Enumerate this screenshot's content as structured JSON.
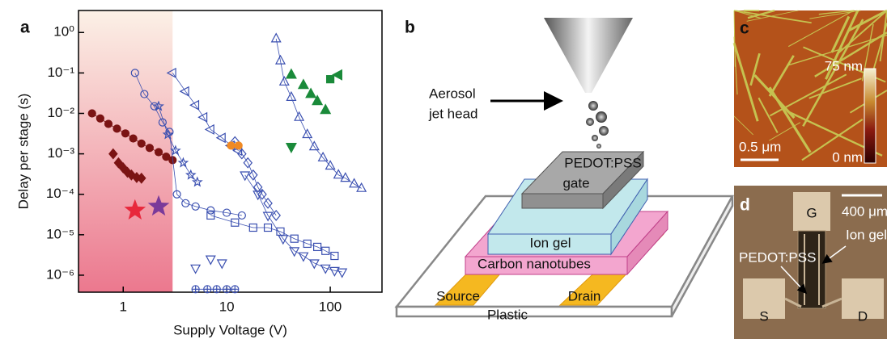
{
  "chart_data": {
    "type": "scatter",
    "panel_label": "a",
    "x_label": "Supply Voltage (V)",
    "y_label": "Delay per stage (s)",
    "xscale": "log",
    "yscale": "log",
    "xlim": [
      0.37,
      316
    ],
    "ylim": [
      3.8e-07,
      3.5
    ],
    "xticks": [
      1,
      10,
      100
    ],
    "yticks": [
      {
        "value": 1,
        "label": "10⁰"
      },
      {
        "value": 0.1,
        "label": "10⁻¹"
      },
      {
        "value": 0.01,
        "label": "10⁻²"
      },
      {
        "value": 0.001,
        "label": "10⁻³"
      },
      {
        "value": 0.0001,
        "label": "10⁻⁴"
      },
      {
        "value": 1e-05,
        "label": "10⁻⁵"
      },
      {
        "value": 1e-06,
        "label": "10⁻⁶"
      }
    ],
    "highlight_xlim": [
      0.37,
      3
    ],
    "highlight_color": "#e8607a",
    "series": [
      {
        "color": "#7b1414",
        "marker": "circle",
        "filled": true,
        "line": true,
        "x": [
          0.5,
          0.6,
          0.72,
          0.87,
          1.05,
          1.25,
          1.5,
          1.8,
          2.2,
          2.6,
          3
        ],
        "values": [
          0.01,
          0.0075,
          0.0055,
          0.0042,
          0.0032,
          0.0024,
          0.0018,
          0.0014,
          0.0011,
          0.00085,
          0.0007
        ]
      },
      {
        "color": "#7b1414",
        "marker": "diamond",
        "filled": true,
        "line": false,
        "x": [
          0.8,
          0.9,
          1.0,
          1.1,
          1.2,
          1.35,
          1.5
        ],
        "values": [
          0.001,
          0.0006,
          0.00045,
          0.00035,
          0.0003,
          0.00026,
          0.00025
        ]
      },
      {
        "color": "#e8283c",
        "marker": "big-star",
        "filled": true,
        "line": false,
        "x": [
          1.3
        ],
        "values": [
          4e-05
        ]
      },
      {
        "color": "#7a3a9a",
        "marker": "big-star",
        "filled": true,
        "line": false,
        "x": [
          2.2
        ],
        "values": [
          5e-05
        ]
      },
      {
        "color": "#3a4fb0",
        "marker": "circle",
        "filled": false,
        "line": true,
        "x": [
          1.3,
          1.6,
          2,
          2.4,
          2.8,
          3.3,
          4,
          5,
          7,
          10,
          14
        ],
        "values": [
          0.1,
          0.03,
          0.015,
          0.006,
          0.0035,
          0.0001,
          6e-05,
          5e-05,
          4e-05,
          3.5e-05,
          3e-05
        ]
      },
      {
        "color": "#3a4fb0",
        "marker": "star",
        "filled": false,
        "line": true,
        "x": [
          2.2,
          2.7,
          3.2,
          3.8,
          4.5,
          5.2
        ],
        "values": [
          0.015,
          0.003,
          0.0012,
          0.0006,
          0.0003,
          0.0002
        ]
      },
      {
        "color": "#3a4fb0",
        "marker": "triangle-left",
        "filled": false,
        "line": true,
        "x": [
          3,
          4,
          5,
          6,
          7,
          9,
          11,
          13
        ],
        "values": [
          0.1,
          0.035,
          0.016,
          0.008,
          0.004,
          0.0025,
          0.0016,
          0.0012
        ]
      },
      {
        "color": "#3a4fb0",
        "marker": "diamond",
        "filled": false,
        "line": true,
        "x": [
          12,
          14,
          16,
          18,
          20,
          22,
          25,
          30
        ],
        "values": [
          0.002,
          0.001,
          0.0006,
          0.0003,
          0.00015,
          0.0001,
          6e-05,
          3e-05
        ]
      },
      {
        "color": "#3a4fb0",
        "marker": "square",
        "filled": false,
        "line": true,
        "x": [
          7,
          12,
          18,
          25,
          33,
          45,
          60,
          75,
          90,
          110
        ],
        "values": [
          3e-05,
          2e-05,
          1.5e-05,
          1.5e-05,
          1.2e-05,
          8e-06,
          6e-06,
          5e-06,
          4e-06,
          3e-06
        ]
      },
      {
        "color": "#3a4fb0",
        "marker": "triangle-up",
        "filled": false,
        "line": true,
        "x": [
          30,
          33,
          36,
          42,
          50,
          60,
          70,
          85,
          100,
          120,
          140,
          170,
          200
        ],
        "values": [
          0.7,
          0.2,
          0.06,
          0.025,
          0.008,
          0.003,
          0.0015,
          0.0008,
          0.0005,
          0.0003,
          0.00025,
          0.00018,
          0.00014
        ]
      },
      {
        "color": "#3a4fb0",
        "marker": "triangle-down",
        "filled": false,
        "line": true,
        "x": [
          15,
          20,
          25,
          35,
          45,
          55,
          70,
          90,
          110,
          130
        ],
        "values": [
          0.0003,
          0.0001,
          3e-05,
          8e-06,
          4e-06,
          3e-06,
          2e-06,
          1.5e-06,
          1.3e-06,
          1.2e-06
        ]
      },
      {
        "color": "#3a4fb0",
        "marker": "triangle-down",
        "filled": false,
        "line": false,
        "x": [
          5,
          7,
          9
        ],
        "values": [
          1.5e-06,
          2.5e-06,
          2e-06
        ]
      },
      {
        "color": "#3a4fb0",
        "marker": "circled-plus",
        "filled": false,
        "line": true,
        "x": [
          5,
          6.5,
          8,
          10,
          12
        ],
        "values": [
          4.5e-07,
          4.5e-07,
          4.5e-07,
          4.5e-07,
          4.5e-07
        ]
      },
      {
        "color": "#f08a24",
        "marker": "circle",
        "filled": true,
        "line": false,
        "x": [
          11,
          13
        ],
        "values": [
          0.0016,
          0.0016
        ]
      },
      {
        "color": "#1a8a3a",
        "marker": "triangle-up",
        "filled": true,
        "line": false,
        "x": [
          42,
          55,
          65,
          75,
          90
        ],
        "values": [
          0.09,
          0.05,
          0.03,
          0.02,
          0.012
        ]
      },
      {
        "color": "#1a8a3a",
        "marker": "triangle-down",
        "filled": true,
        "line": false,
        "x": [
          42
        ],
        "values": [
          0.0015
        ]
      },
      {
        "color": "#1a8a3a",
        "marker": "square",
        "filled": true,
        "line": false,
        "x": [
          100
        ],
        "values": [
          0.07
        ]
      },
      {
        "color": "#1a8a3a",
        "marker": "triangle-left",
        "filled": true,
        "line": false,
        "x": [
          120
        ],
        "values": [
          0.09
        ]
      }
    ]
  },
  "panel_b": {
    "label": "b",
    "head": [
      "Aerosol",
      "jet head"
    ],
    "gate": [
      "PEDOT:PSS",
      "gate"
    ],
    "ion_gel": "Ion gel",
    "cnt": "Carbon nanotubes",
    "source": "Source",
    "drain": "Drain",
    "substrate": "Plastic"
  },
  "panel_c": {
    "label": "c",
    "scale_max": "75 nm",
    "scale_min": "0 nm",
    "scale_bar": "0.5 μm"
  },
  "panel_d": {
    "label": "d",
    "scale_bar": "400 μm",
    "gate": "G",
    "source": "S",
    "drain": "D",
    "pedot": "PEDOT:PSS",
    "ion_gel": "Ion gel"
  }
}
